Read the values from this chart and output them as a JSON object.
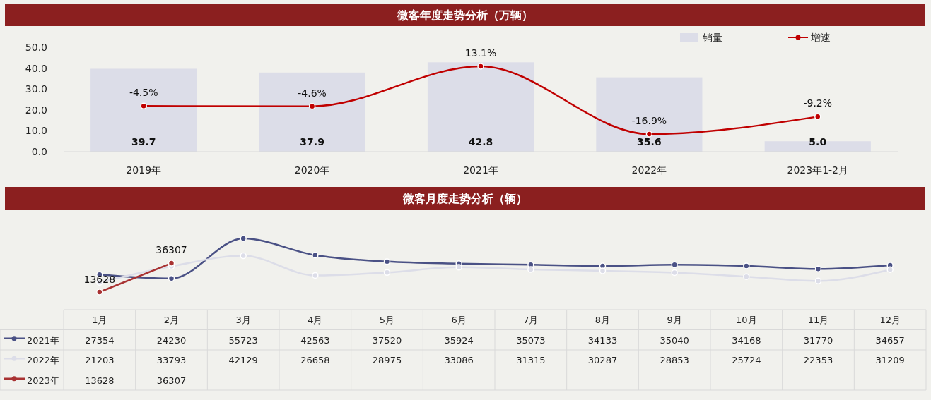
{
  "chart_data": [
    {
      "type": "bar",
      "title": "微客年度走势分析（万辆）",
      "categories": [
        "2019年",
        "2020年",
        "2021年",
        "2022年",
        "2023年1-2月"
      ],
      "series": [
        {
          "name": "销量",
          "type": "bar",
          "color": "#dcdde8",
          "values": [
            39.7,
            37.9,
            42.8,
            35.6,
            5.0
          ],
          "value_labels": [
            "39.7",
            "37.9",
            "42.8",
            "35.6",
            "5.0"
          ]
        },
        {
          "name": "增速",
          "type": "line",
          "axis": "y2",
          "color": "#c00000",
          "values": [
            -4.5,
            -4.6,
            13.1,
            -16.9,
            -9.2
          ],
          "value_labels": [
            "-4.5%",
            "-4.6%",
            "13.1%",
            "-16.9%",
            "-9.2%"
          ]
        }
      ],
      "ylim": [
        0,
        50
      ],
      "yticks": [
        {
          "value": 0,
          "label": "0.0"
        },
        {
          "value": 10,
          "label": "10.0"
        },
        {
          "value": 20,
          "label": "20.0"
        },
        {
          "value": 30,
          "label": "30.0"
        },
        {
          "value": 40,
          "label": "40.0"
        },
        {
          "value": 50,
          "label": "50.0"
        }
      ],
      "legend": "top right",
      "marker": "circle",
      "grid": false
    },
    {
      "type": "line",
      "title": "微客月度走势分析（辆）",
      "categories": [
        "1月",
        "2月",
        "3月",
        "4月",
        "5月",
        "6月",
        "7月",
        "8月",
        "9月",
        "10月",
        "11月",
        "12月"
      ],
      "series": [
        {
          "name": "2021年",
          "color": "#4a5185",
          "values": [
            27354,
            24230,
            55723,
            42563,
            37520,
            35924,
            35073,
            34133,
            35040,
            34168,
            31770,
            34657
          ]
        },
        {
          "name": "2022年",
          "color": "#dcdde8",
          "values": [
            21203,
            33793,
            42129,
            26658,
            28975,
            33086,
            31315,
            30287,
            28853,
            25724,
            22353,
            31209
          ]
        },
        {
          "name": "2023年",
          "color": "#a83232",
          "values": [
            13628,
            36307,
            null,
            null,
            null,
            null,
            null,
            null,
            null,
            null,
            null,
            null
          ],
          "value_labels": [
            "13628",
            "36307",
            null,
            null,
            null,
            null,
            null,
            null,
            null,
            null,
            null,
            null
          ]
        }
      ],
      "tick_labels": "x",
      "data_labels": true,
      "legend": "left",
      "marker": "circle",
      "grid": false
    }
  ]
}
